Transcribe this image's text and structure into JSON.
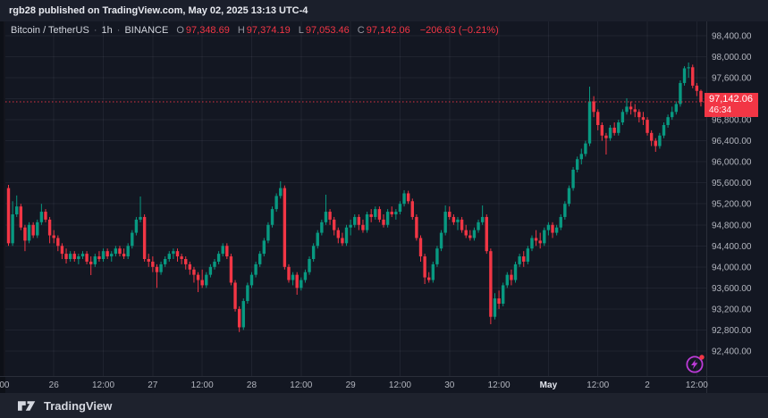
{
  "header": {
    "published_line": "rgb28 published on TradingView.com, May 02, 2025 13:13 UTC-4"
  },
  "legend": {
    "symbol": "Bitcoin / TetherUS",
    "separator": "·",
    "interval": "1h",
    "exchange": "BINANCE",
    "o_label": "O",
    "o_value": "97,348.69",
    "h_label": "H",
    "h_value": "97,374.19",
    "l_label": "L",
    "l_value": "97,053.46",
    "c_label": "C",
    "c_value": "97,142.06",
    "change": "−206.63 (−0.21%)"
  },
  "price_scale": {
    "last_price": "97,142.06",
    "countdown": "46:34"
  },
  "footer": {
    "brand": "TradingView"
  },
  "colors": {
    "up": "#089981",
    "down": "#f23645",
    "badge": "#f23645",
    "background": "#131722",
    "grid": "rgba(240,243,250,0.06)",
    "axis_text": "#b2b5be",
    "axis_line": "#2a2e39",
    "accent_purple": "#bd3bd8"
  },
  "chart_data": {
    "type": "candlestick",
    "title": "Bitcoin / TetherUS · 1h · BINANCE",
    "interval": "1h",
    "start_time": "2025-04-25 13:00",
    "end_time": "2025-05-02 13:00",
    "last_price": 97142.06,
    "price_line_style": "dotted-red",
    "grid": true,
    "axis": {
      "price_top": 98672,
      "price_bottom": 91923,
      "tick_step": 400
    },
    "y_ticks": [
      "98,400.00",
      "98,000.00",
      "97,600.00",
      "97,200.00",
      "96,800.00",
      "96,400.00",
      "96,000.00",
      "95,600.00",
      "95,200.00",
      "94,800.00",
      "94,400.00",
      "94,000.00",
      "93,600.00",
      "93,200.00",
      "92,800.00",
      "92,400.00"
    ],
    "x_ticks": [
      {
        "i": -1,
        "label": "00"
      },
      {
        "i": 11,
        "label": "26"
      },
      {
        "i": 23,
        "label": "12:00"
      },
      {
        "i": 35,
        "label": "27"
      },
      {
        "i": 47,
        "label": "12:00"
      },
      {
        "i": 59,
        "label": "28"
      },
      {
        "i": 71,
        "label": "12:00"
      },
      {
        "i": 83,
        "label": "29"
      },
      {
        "i": 95,
        "label": "12:00"
      },
      {
        "i": 107,
        "label": "30"
      },
      {
        "i": 119,
        "label": "12:00"
      },
      {
        "i": 131,
        "label": "May",
        "emphasis": true
      },
      {
        "i": 143,
        "label": "12:00"
      },
      {
        "i": 155,
        "label": "2"
      },
      {
        "i": 167,
        "label": "12:00"
      }
    ],
    "candles": [
      [
        95500,
        95560,
        94400,
        94450
      ],
      [
        94450,
        95250,
        94400,
        95000
      ],
      [
        95000,
        95360,
        94950,
        95150
      ],
      [
        95150,
        95200,
        94700,
        94750
      ],
      [
        94750,
        94800,
        94300,
        94500
      ],
      [
        94500,
        94850,
        94450,
        94800
      ],
      [
        94800,
        94850,
        94550,
        94600
      ],
      [
        94600,
        94900,
        94550,
        94850
      ],
      [
        94850,
        95200,
        94800,
        95050
      ],
      [
        95050,
        95100,
        94850,
        94900
      ],
      [
        94900,
        94950,
        94450,
        94600
      ],
      [
        94600,
        94700,
        94450,
        94550
      ],
      [
        94550,
        94600,
        94300,
        94400
      ],
      [
        94400,
        94450,
        94150,
        94250
      ],
      [
        94250,
        94350,
        94065,
        94150
      ],
      [
        94150,
        94300,
        94100,
        94250
      ],
      [
        94250,
        94300,
        94100,
        94150
      ],
      [
        94150,
        94250,
        94050,
        94200
      ],
      [
        94200,
        94300,
        94150,
        94250
      ],
      [
        94250,
        94300,
        94050,
        94100
      ],
      [
        94100,
        94200,
        93844,
        94050
      ],
      [
        94050,
        94250,
        94000,
        94200
      ],
      [
        94200,
        94300,
        94100,
        94150
      ],
      [
        94150,
        94350,
        94100,
        94300
      ],
      [
        94300,
        94350,
        94150,
        94200
      ],
      [
        94200,
        94300,
        94100,
        94250
      ],
      [
        94250,
        94400,
        94200,
        94350
      ],
      [
        94350,
        94400,
        94200,
        94250
      ],
      [
        94250,
        94350,
        94150,
        94200
      ],
      [
        94200,
        94450,
        94150,
        94400
      ],
      [
        94400,
        94700,
        94350,
        94650
      ],
      [
        94650,
        94950,
        94600,
        94900
      ],
      [
        94900,
        95340,
        94850,
        94950
      ],
      [
        94950,
        95000,
        94100,
        94150
      ],
      [
        94150,
        94250,
        94000,
        94100
      ],
      [
        94100,
        94200,
        93900,
        94000
      ],
      [
        94000,
        94050,
        93600,
        93900
      ],
      [
        93900,
        94100,
        93850,
        94050
      ],
      [
        94050,
        94200,
        94000,
        94150
      ],
      [
        94150,
        94300,
        94100,
        94250
      ],
      [
        94250,
        94350,
        94150,
        94300
      ],
      [
        94300,
        94350,
        94100,
        94200
      ],
      [
        94200,
        94250,
        94050,
        94150
      ],
      [
        94150,
        94200,
        93950,
        94050
      ],
      [
        94050,
        94100,
        93850,
        93950
      ],
      [
        93950,
        94000,
        93700,
        93850
      ],
      [
        93850,
        93900,
        93520,
        93750
      ],
      [
        93750,
        93950,
        93600,
        93650
      ],
      [
        93650,
        93900,
        93600,
        93850
      ],
      [
        93850,
        94050,
        93800,
        94000
      ],
      [
        94000,
        94150,
        93950,
        94100
      ],
      [
        94100,
        94300,
        94050,
        94250
      ],
      [
        94250,
        94450,
        94200,
        94400
      ],
      [
        94400,
        94450,
        94150,
        94200
      ],
      [
        94200,
        94250,
        93650,
        93700
      ],
      [
        93700,
        93750,
        93150,
        93200
      ],
      [
        93200,
        93250,
        92760,
        92850
      ],
      [
        92850,
        93400,
        92800,
        93350
      ],
      [
        93350,
        93700,
        93300,
        93650
      ],
      [
        93650,
        93900,
        93600,
        93850
      ],
      [
        93850,
        94100,
        93800,
        94050
      ],
      [
        94050,
        94300,
        94000,
        94250
      ],
      [
        94250,
        94550,
        94200,
        94500
      ],
      [
        94500,
        94850,
        94450,
        94800
      ],
      [
        94800,
        95150,
        94750,
        95100
      ],
      [
        95100,
        95400,
        95050,
        95350
      ],
      [
        95350,
        95630,
        95300,
        95500
      ],
      [
        95500,
        95550,
        93950,
        94000
      ],
      [
        94000,
        94050,
        93700,
        93750
      ],
      [
        93750,
        93900,
        93650,
        93850
      ],
      [
        93850,
        93900,
        93470,
        93600
      ],
      [
        93600,
        93800,
        93550,
        93750
      ],
      [
        93750,
        93950,
        93700,
        93900
      ],
      [
        93900,
        94200,
        93850,
        94150
      ],
      [
        94150,
        94450,
        94100,
        94400
      ],
      [
        94400,
        94700,
        94350,
        94650
      ],
      [
        94650,
        94900,
        94600,
        94850
      ],
      [
        94850,
        95374,
        94800,
        95050
      ],
      [
        95050,
        95100,
        94800,
        94900
      ],
      [
        94900,
        94950,
        94600,
        94700
      ],
      [
        94700,
        94750,
        94450,
        94550
      ],
      [
        94550,
        94650,
        94400,
        94450
      ],
      [
        94450,
        94800,
        94400,
        94750
      ],
      [
        94750,
        94900,
        94600,
        94800
      ],
      [
        94800,
        95000,
        94750,
        94950
      ],
      [
        94950,
        95000,
        94700,
        94800
      ],
      [
        94800,
        94900,
        94650,
        94700
      ],
      [
        94700,
        95050,
        94650,
        95000
      ],
      [
        95000,
        95100,
        94850,
        94950
      ],
      [
        94950,
        95150,
        94900,
        95100
      ],
      [
        95100,
        95150,
        94850,
        94900
      ],
      [
        94900,
        95000,
        94750,
        94800
      ],
      [
        94800,
        95100,
        94750,
        95050
      ],
      [
        95050,
        95150,
        94950,
        95000
      ],
      [
        95000,
        95100,
        94900,
        95050
      ],
      [
        95050,
        95250,
        95000,
        95200
      ],
      [
        95200,
        95460,
        95150,
        95400
      ],
      [
        95400,
        95450,
        95200,
        95250
      ],
      [
        95250,
        95300,
        94900,
        94950
      ],
      [
        94950,
        95000,
        94500,
        94550
      ],
      [
        94550,
        94600,
        94100,
        94200
      ],
      [
        94200,
        94250,
        93674,
        93800
      ],
      [
        93800,
        93900,
        93700,
        93750
      ],
      [
        93750,
        94100,
        93700,
        94050
      ],
      [
        94050,
        94400,
        94000,
        94350
      ],
      [
        94350,
        94700,
        94300,
        94650
      ],
      [
        94650,
        95170,
        94600,
        95050
      ],
      [
        95050,
        95150,
        94900,
        94950
      ],
      [
        94950,
        95000,
        94800,
        94850
      ],
      [
        94850,
        94950,
        94700,
        94900
      ],
      [
        94900,
        94950,
        94650,
        94700
      ],
      [
        94700,
        94800,
        94550,
        94600
      ],
      [
        94600,
        94700,
        94500,
        94550
      ],
      [
        94550,
        94750,
        94500,
        94700
      ],
      [
        94700,
        94900,
        94650,
        94850
      ],
      [
        94850,
        95170,
        94800,
        94950
      ],
      [
        94950,
        95000,
        94250,
        94300
      ],
      [
        94300,
        94350,
        92909,
        93050
      ],
      [
        93050,
        93500,
        93000,
        93400
      ],
      [
        93400,
        93550,
        93200,
        93300
      ],
      [
        93300,
        93700,
        93250,
        93650
      ],
      [
        93650,
        93900,
        93600,
        93850
      ],
      [
        93850,
        93950,
        93650,
        93750
      ],
      [
        93750,
        94100,
        93700,
        94050
      ],
      [
        94050,
        94250,
        94000,
        94200
      ],
      [
        94200,
        94300,
        94000,
        94100
      ],
      [
        94100,
        94400,
        94050,
        94350
      ],
      [
        94350,
        94600,
        94300,
        94550
      ],
      [
        94550,
        94700,
        94400,
        94500
      ],
      [
        94500,
        94650,
        94350,
        94450
      ],
      [
        94450,
        94750,
        94400,
        94700
      ],
      [
        94700,
        94850,
        94600,
        94800
      ],
      [
        94800,
        94850,
        94550,
        94650
      ],
      [
        94650,
        94800,
        94600,
        94750
      ],
      [
        94750,
        95000,
        94700,
        94950
      ],
      [
        94950,
        95250,
        94900,
        95200
      ],
      [
        95200,
        95550,
        95150,
        95500
      ],
      [
        95500,
        95900,
        95450,
        95850
      ],
      [
        95850,
        96100,
        95800,
        96050
      ],
      [
        96050,
        96250,
        95950,
        96150
      ],
      [
        96150,
        96400,
        96100,
        96350
      ],
      [
        96350,
        97431,
        96300,
        97150
      ],
      [
        97150,
        97250,
        96850,
        96950
      ],
      [
        96950,
        97000,
        96600,
        96700
      ],
      [
        96700,
        96750,
        96400,
        96500
      ],
      [
        96500,
        96550,
        96139,
        96450
      ],
      [
        96450,
        96700,
        96400,
        96650
      ],
      [
        96650,
        96750,
        96500,
        96550
      ],
      [
        96550,
        96800,
        96500,
        96750
      ],
      [
        96750,
        97000,
        96700,
        96950
      ],
      [
        96950,
        97210,
        96900,
        97050
      ],
      [
        97050,
        97150,
        96900,
        97000
      ],
      [
        97000,
        97100,
        96850,
        96950
      ],
      [
        96950,
        97000,
        96750,
        96850
      ],
      [
        96850,
        96950,
        96700,
        96800
      ],
      [
        96800,
        96850,
        96500,
        96550
      ],
      [
        96550,
        96600,
        96300,
        96400
      ],
      [
        96400,
        96450,
        96190,
        96300
      ],
      [
        96300,
        96550,
        96250,
        96500
      ],
      [
        96500,
        96750,
        96450,
        96700
      ],
      [
        96700,
        96900,
        96650,
        96850
      ],
      [
        96850,
        97050,
        96800,
        96950
      ],
      [
        96950,
        97150,
        96900,
        97100
      ],
      [
        97100,
        97550,
        97050,
        97500
      ],
      [
        97500,
        97820,
        97450,
        97780
      ],
      [
        97780,
        97890,
        97600,
        97800
      ],
      [
        97800,
        97850,
        97400,
        97450
      ],
      [
        97450,
        97500,
        97250,
        97350
      ],
      [
        97348.69,
        97374.19,
        97053.46,
        97142.06
      ]
    ]
  }
}
